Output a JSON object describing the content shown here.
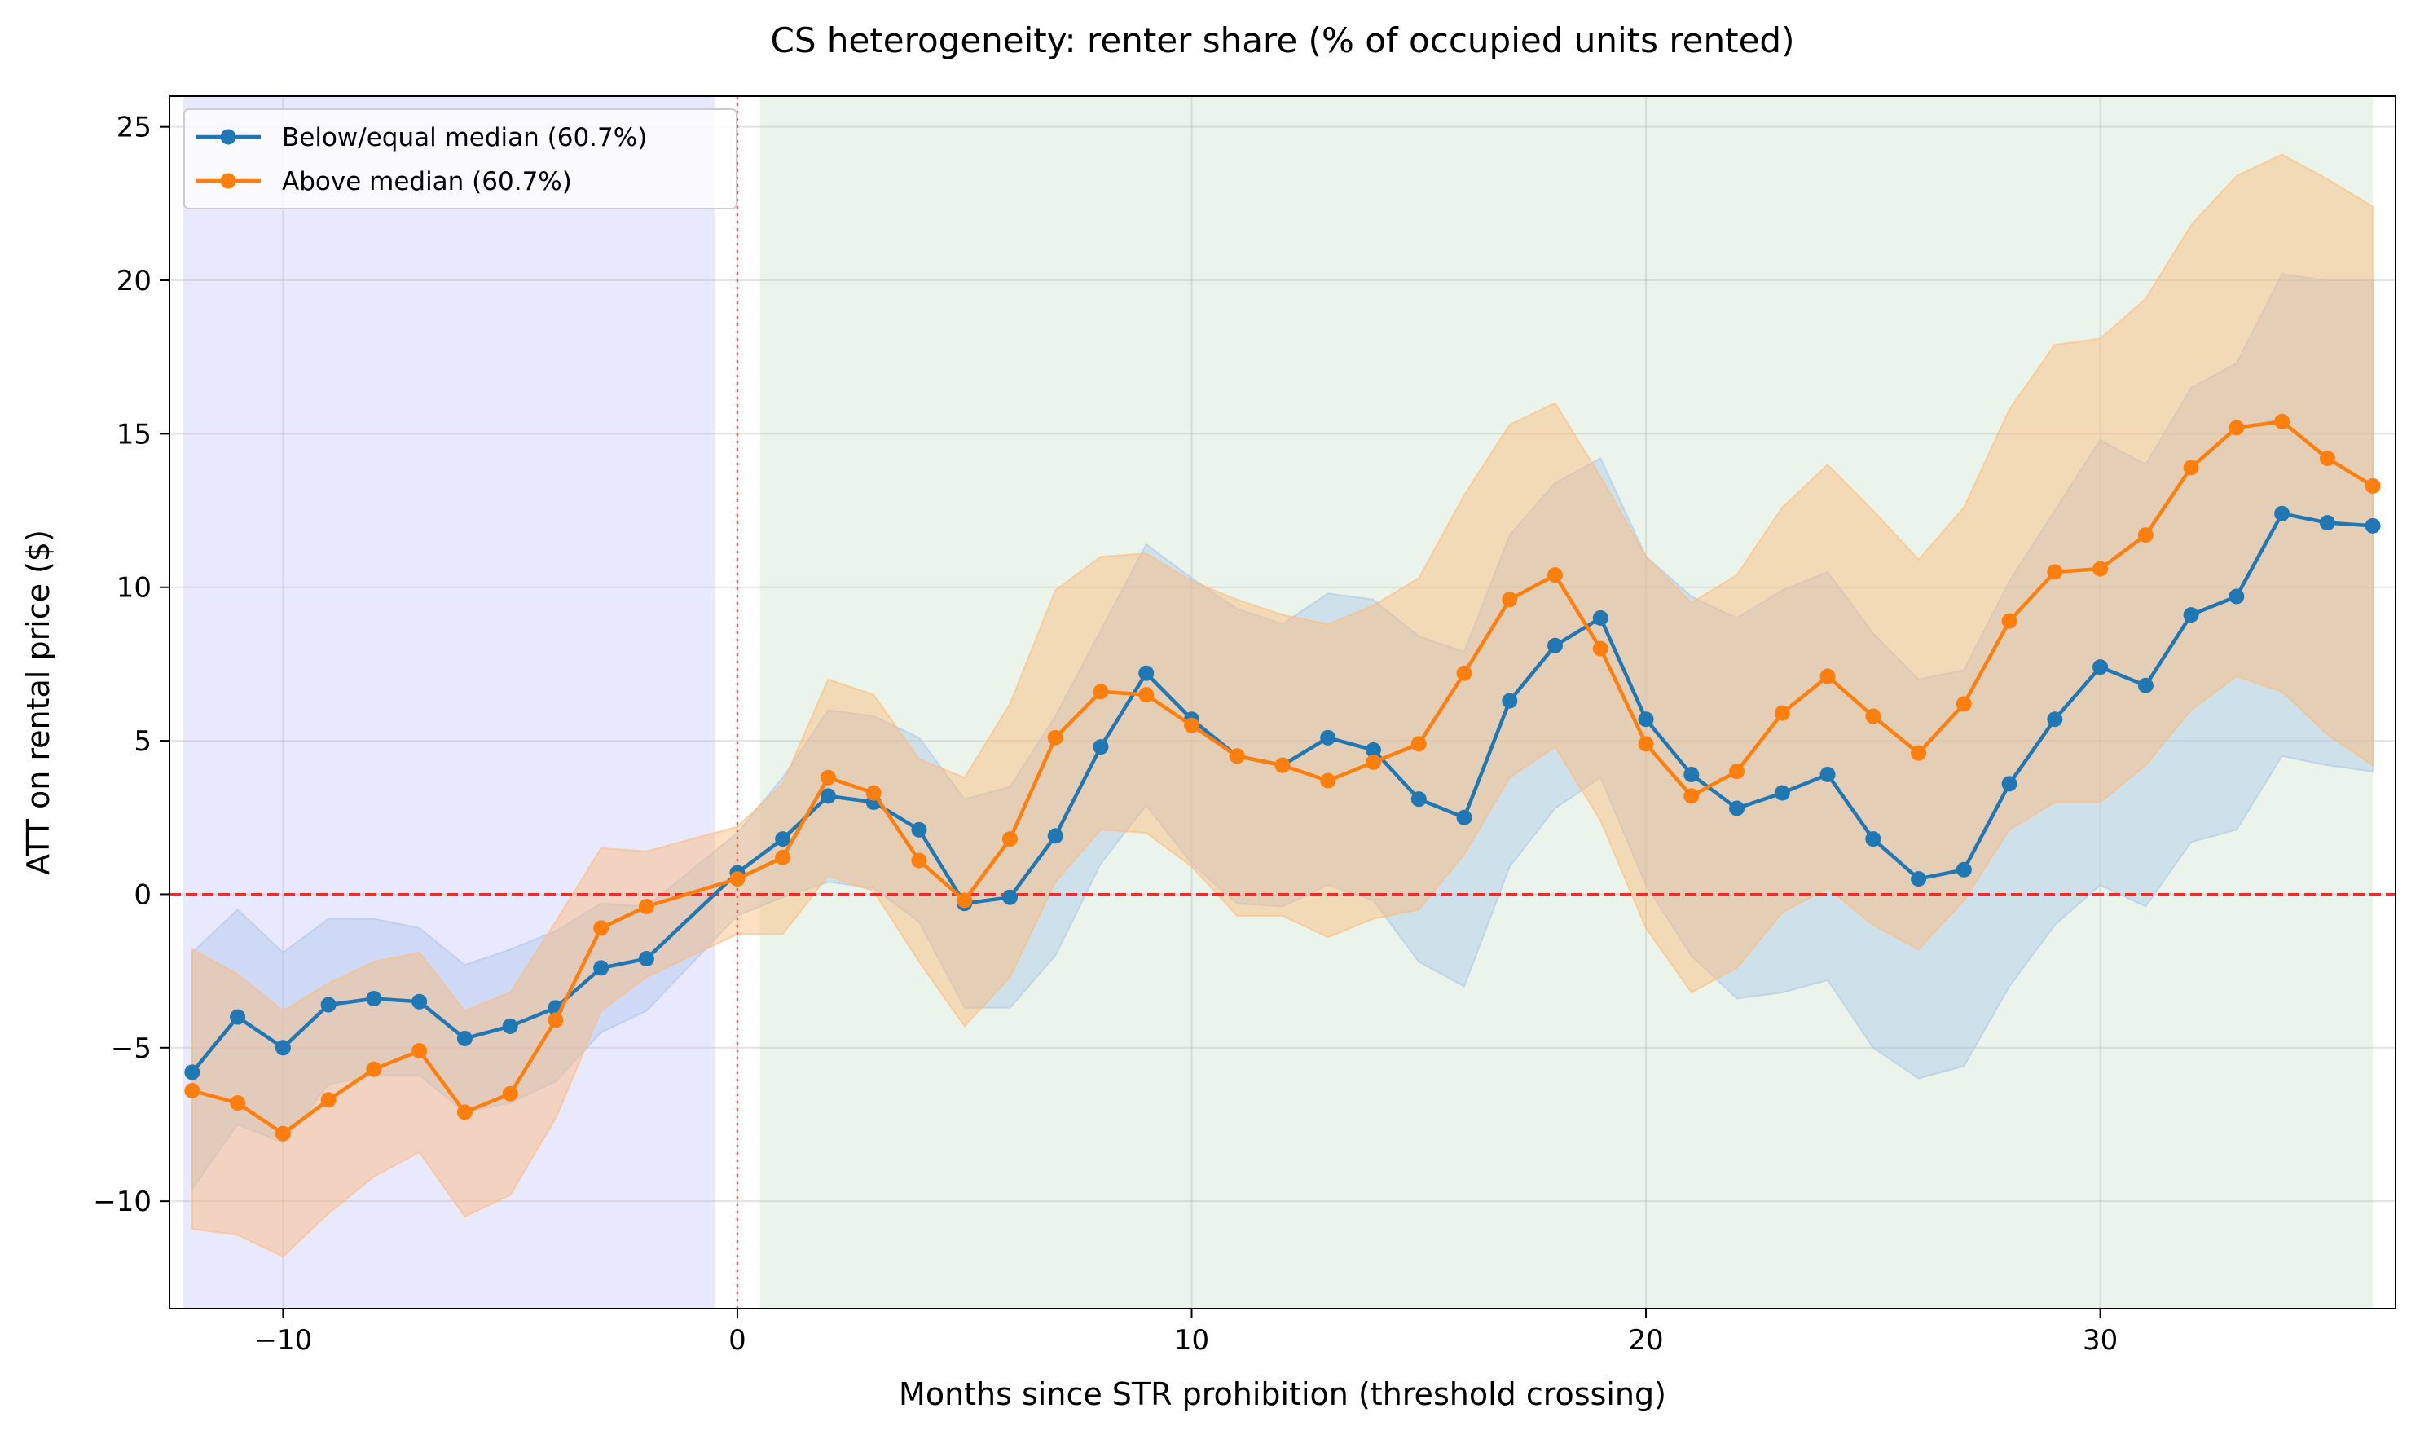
{
  "chart_data": {
    "type": "line",
    "title": "CS heterogeneity: renter share (% of occupied units rented)",
    "xlabel": "Months since STR prohibition (threshold crossing)",
    "ylabel": "ATT on rental price ($)",
    "xlim": [
      -12.5,
      36.5
    ],
    "ylim": [
      -13.5,
      26
    ],
    "xticks": [
      -10,
      0,
      10,
      20,
      30
    ],
    "xtick_labels": [
      "−10",
      "0",
      "10",
      "20",
      "30"
    ],
    "yticks": [
      -10,
      -5,
      0,
      5,
      10,
      15,
      20,
      25
    ],
    "ytick_labels": [
      "−10",
      "−5",
      "0",
      "5",
      "10",
      "15",
      "20",
      "25"
    ],
    "grid": true,
    "legend_position": "top-left",
    "reference_lines": [
      {
        "axis": "y",
        "value": 0,
        "style": "dashed",
        "color": "#e8302a"
      },
      {
        "axis": "x",
        "value": 0,
        "style": "dotted",
        "color": "#e8302a"
      }
    ],
    "shaded_regions": [
      {
        "x_start": -12.2,
        "x_end": -0.5,
        "color": "#e8e8ff"
      },
      {
        "x_start": 0.5,
        "x_end": 36,
        "color": "#eaf4ea"
      }
    ],
    "x": [
      -12,
      -11,
      -10,
      -9,
      -8,
      -7,
      -6,
      -5,
      -4,
      -3,
      -2,
      0,
      1,
      2,
      3,
      4,
      5,
      6,
      7,
      8,
      9,
      10,
      11,
      12,
      13,
      14,
      15,
      16,
      17,
      18,
      19,
      20,
      21,
      22,
      23,
      24,
      25,
      26,
      27,
      28,
      29,
      30,
      31,
      32,
      33,
      34,
      35,
      36
    ],
    "series": [
      {
        "name": "Below/equal median (60.7%)",
        "color": "#1f77b4",
        "band_color": "#aec7e8",
        "values": [
          -5.8,
          -4.0,
          -5.0,
          -3.6,
          -3.4,
          -3.5,
          -4.7,
          -4.3,
          -3.7,
          -2.4,
          -2.1,
          0.7,
          1.8,
          3.2,
          3.0,
          2.1,
          -0.3,
          -0.1,
          1.9,
          4.8,
          7.2,
          5.7,
          4.5,
          4.2,
          5.1,
          4.7,
          3.1,
          2.5,
          6.3,
          8.1,
          9.0,
          5.7,
          3.9,
          2.8,
          3.3,
          3.9,
          1.8,
          0.5,
          0.8,
          3.6,
          5.7,
          7.4,
          6.8,
          9.1,
          9.7,
          12.4,
          12.1,
          12.0
        ],
        "lower": [
          -9.6,
          -7.5,
          -8.1,
          -6.2,
          -5.9,
          -5.9,
          -7.1,
          -6.8,
          -6.1,
          -4.5,
          -3.8,
          -0.7,
          -0.1,
          0.4,
          0.2,
          -0.9,
          -3.7,
          -3.7,
          -2.0,
          1.0,
          2.9,
          1.0,
          -0.3,
          -0.4,
          0.3,
          -0.2,
          -2.2,
          -3.0,
          0.9,
          2.8,
          3.8,
          0.3,
          -2.0,
          -3.4,
          -3.2,
          -2.8,
          -5.0,
          -6.0,
          -5.6,
          -3.0,
          -1.0,
          0.3,
          -0.4,
          1.7,
          2.1,
          4.5,
          4.2,
          4.0
        ],
        "upper": [
          -1.9,
          -0.5,
          -1.9,
          -0.8,
          -0.8,
          -1.1,
          -2.3,
          -1.8,
          -1.2,
          -0.3,
          -0.4,
          2.0,
          3.8,
          6.0,
          5.8,
          5.1,
          3.1,
          3.5,
          5.8,
          8.6,
          11.4,
          10.3,
          9.3,
          8.8,
          9.8,
          9.6,
          8.4,
          7.9,
          11.7,
          13.4,
          14.2,
          11.0,
          9.7,
          9.0,
          9.9,
          10.5,
          8.5,
          7.0,
          7.3,
          10.2,
          12.5,
          14.8,
          14.0,
          16.5,
          17.3,
          20.2,
          20.0,
          20.0
        ]
      },
      {
        "name": "Above median (60.7%)",
        "color": "#ff7f0e",
        "band_color": "#ffbb78",
        "values": [
          -6.4,
          -6.8,
          -7.8,
          -6.7,
          -5.7,
          -5.1,
          -7.1,
          -6.5,
          -4.1,
          -1.1,
          -0.4,
          0.5,
          1.2,
          3.8,
          3.3,
          1.1,
          -0.2,
          1.8,
          5.1,
          6.6,
          6.5,
          5.5,
          4.5,
          4.2,
          3.7,
          4.3,
          4.9,
          7.2,
          9.6,
          10.4,
          8.0,
          4.9,
          3.2,
          4.0,
          5.9,
          7.1,
          5.8,
          4.6,
          6.2,
          8.9,
          10.5,
          10.6,
          11.7,
          13.9,
          15.2,
          15.4,
          14.2,
          13.3
        ],
        "lower": [
          -10.9,
          -11.1,
          -11.8,
          -10.4,
          -9.2,
          -8.4,
          -10.5,
          -9.8,
          -7.3,
          -3.8,
          -2.7,
          -1.3,
          -1.3,
          0.6,
          0.1,
          -2.2,
          -4.3,
          -2.7,
          0.4,
          2.1,
          2.0,
          0.9,
          -0.7,
          -0.7,
          -1.4,
          -0.8,
          -0.5,
          1.3,
          3.8,
          4.8,
          2.4,
          -1.1,
          -3.2,
          -2.4,
          -0.6,
          0.2,
          -1.0,
          -1.8,
          -0.2,
          2.1,
          3.0,
          3.0,
          4.2,
          6.0,
          7.1,
          6.6,
          5.2,
          4.2
        ],
        "upper": [
          -1.8,
          -2.6,
          -3.8,
          -2.9,
          -2.2,
          -1.9,
          -3.8,
          -3.2,
          -0.9,
          1.5,
          1.4,
          2.2,
          3.6,
          7.0,
          6.5,
          4.4,
          3.8,
          6.2,
          9.9,
          11.0,
          11.1,
          10.2,
          9.6,
          9.1,
          8.8,
          9.4,
          10.3,
          13.0,
          15.3,
          16.0,
          13.6,
          11.0,
          9.5,
          10.4,
          12.6,
          14.0,
          12.5,
          10.9,
          12.6,
          15.8,
          17.9,
          18.1,
          19.4,
          21.8,
          23.4,
          24.1,
          23.3,
          22.4
        ]
      }
    ]
  }
}
